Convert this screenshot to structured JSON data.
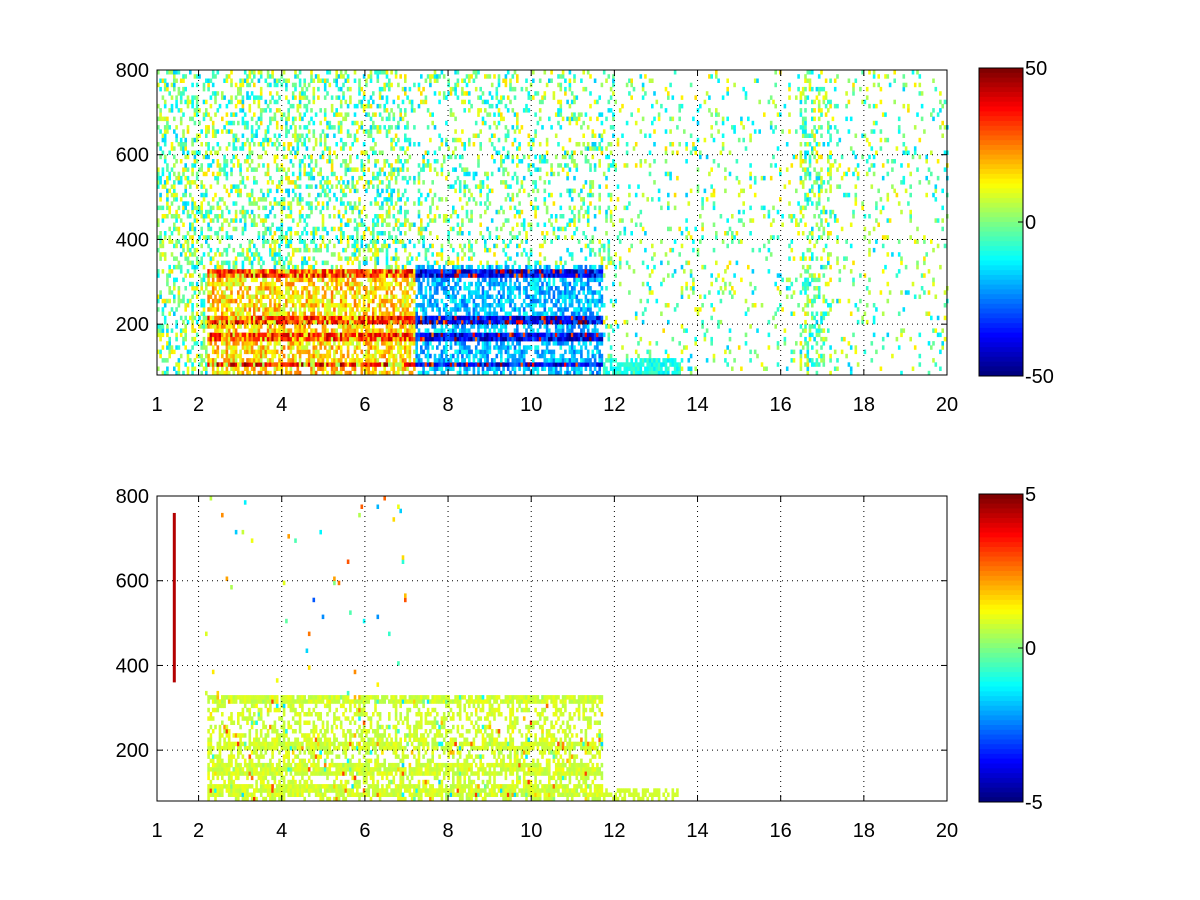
{
  "chart_data": [
    {
      "type": "heatmap",
      "title": "",
      "xlabel": "",
      "ylabel": "",
      "xlim": [
        1,
        20
      ],
      "ylim": [
        80,
        800
      ],
      "xticks": [
        "1",
        "2",
        "4",
        "6",
        "8",
        "10",
        "12",
        "14",
        "16",
        "18",
        "20"
      ],
      "xtick_values": [
        1,
        2,
        4,
        6,
        8,
        10,
        12,
        14,
        16,
        18,
        20
      ],
      "yticks": [
        "200",
        "400",
        "600",
        "800"
      ],
      "ytick_values": [
        200,
        400,
        600,
        800
      ],
      "grid": true,
      "colormap": "jet",
      "colorbar": {
        "min": -50,
        "max": 50,
        "ticks": [
          "50",
          "0",
          "-50"
        ],
        "tick_values": [
          50,
          0,
          -50
        ]
      },
      "nan_color": "#ffffff",
      "features": {
        "strong_rows_y": [
          100,
          165,
          205,
          315
        ],
        "positive_region_x": [
          2.2,
          7.2
        ],
        "negative_region_x": [
          7.2,
          11.7
        ],
        "sparse_noise_x": [
          1,
          20
        ]
      }
    },
    {
      "type": "heatmap",
      "title": "",
      "xlabel": "",
      "ylabel": "",
      "xlim": [
        1,
        20
      ],
      "ylim": [
        80,
        800
      ],
      "xticks": [
        "1",
        "2",
        "4",
        "6",
        "8",
        "10",
        "12",
        "14",
        "16",
        "18",
        "20"
      ],
      "xtick_values": [
        1,
        2,
        4,
        6,
        8,
        10,
        12,
        14,
        16,
        18,
        20
      ],
      "yticks": [
        "200",
        "400",
        "600",
        "800"
      ],
      "ytick_values": [
        200,
        400,
        600,
        800
      ],
      "grid": true,
      "colormap": "jet",
      "colorbar": {
        "min": -5,
        "max": 5,
        "ticks": [
          "5",
          "0",
          "-5"
        ],
        "tick_values": [
          5,
          0,
          -5
        ]
      },
      "nan_color": "#ffffff",
      "features": {
        "dense_region_x": [
          2.2,
          11.7
        ],
        "dense_region_ymax": 330,
        "typical_value": 0.8
      }
    }
  ]
}
